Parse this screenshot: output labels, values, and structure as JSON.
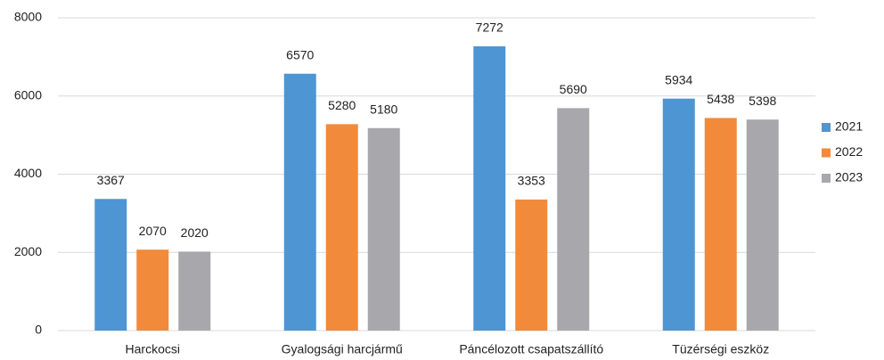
{
  "chart_data": {
    "type": "bar",
    "categories": [
      "Harckocsi",
      "Gyalogsági harcjármű",
      "Páncélozott csapatszállító",
      "Tüzérségi eszköz"
    ],
    "series": [
      {
        "name": "2021",
        "color": "#4e95d3",
        "values": [
          3367,
          6570,
          7272,
          5934
        ]
      },
      {
        "name": "2022",
        "color": "#f28a3c",
        "values": [
          2070,
          5280,
          3353,
          5438
        ]
      },
      {
        "name": "2023",
        "color": "#a8a8ac",
        "values": [
          2020,
          5180,
          5690,
          5398
        ]
      }
    ],
    "ylim": [
      0,
      8000
    ],
    "yticks": [
      0,
      2000,
      4000,
      6000,
      8000
    ],
    "grid": true,
    "legend": "right"
  }
}
